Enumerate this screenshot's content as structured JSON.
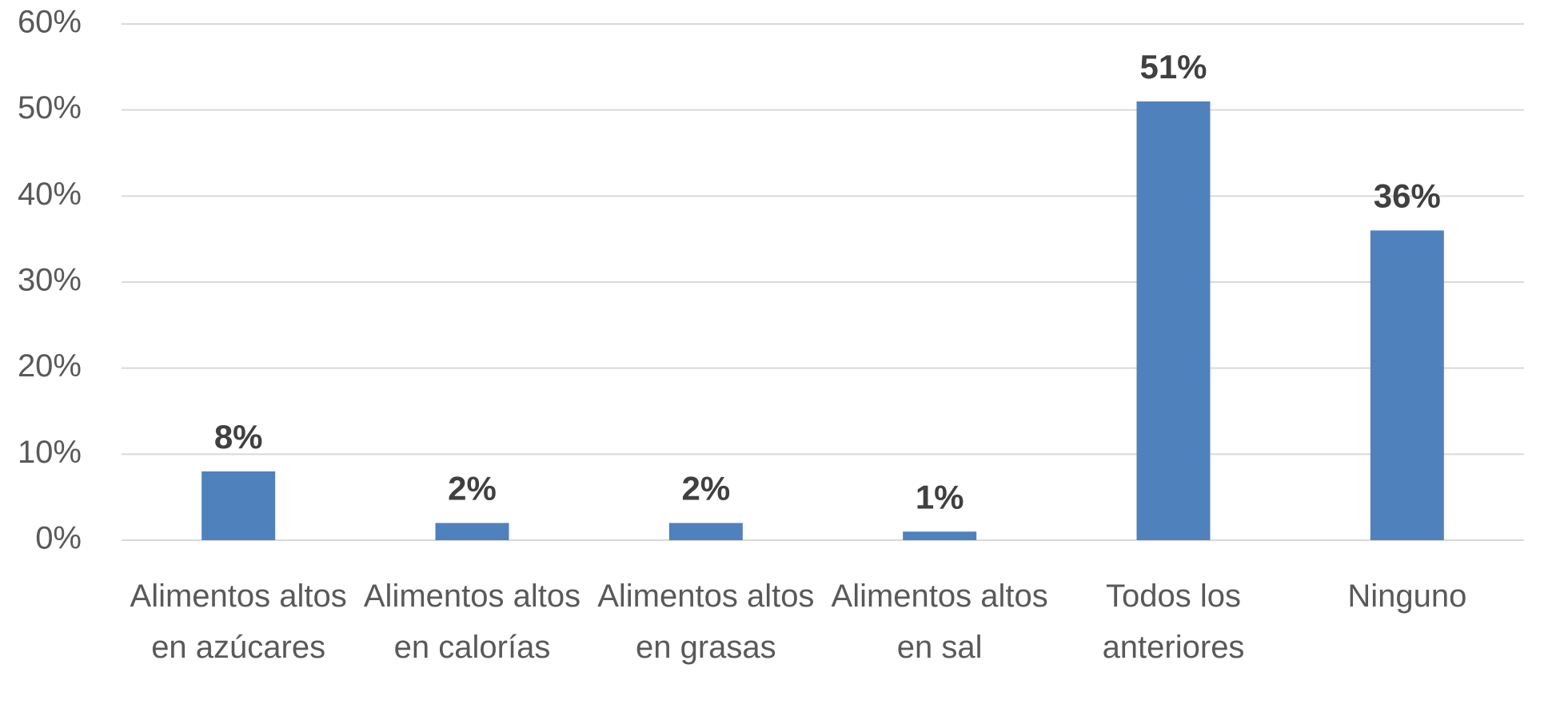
{
  "chart_data": {
    "type": "bar",
    "categories": [
      "Alimentos altos en azúcares",
      "Alimentos altos en calorías",
      "Alimentos altos en grasas",
      "Alimentos altos en sal",
      "Todos los anteriores",
      "Ninguno"
    ],
    "values": [
      8,
      2,
      2,
      1,
      51,
      36
    ],
    "value_labels": [
      "8%",
      "2%",
      "2%",
      "1%",
      "51%",
      "36%"
    ],
    "color": "#4f81bd",
    "ylim": [
      0,
      60
    ],
    "yticks": [
      {
        "value": 0,
        "label": "0%"
      },
      {
        "value": 10,
        "label": "10%"
      },
      {
        "value": 20,
        "label": "20%"
      },
      {
        "value": 30,
        "label": "30%"
      },
      {
        "value": 40,
        "label": "40%"
      },
      {
        "value": 50,
        "label": "50%"
      },
      {
        "value": 60,
        "label": "60%"
      }
    ],
    "grid": true
  }
}
